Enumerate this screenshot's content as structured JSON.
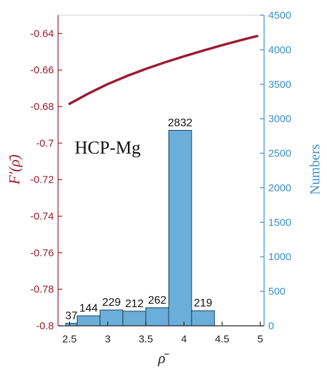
{
  "chart_data": {
    "type": "bar",
    "annotation": "HCP-Mg",
    "xlabel": "ρ̄",
    "ylabel_left": "F′(ρ̄)",
    "ylabel_right": "Numbers",
    "x_ticks": [
      "2.5",
      "3",
      "3.5",
      "4",
      "4.5",
      "5"
    ],
    "x_tick_values": [
      2.5,
      3,
      3.5,
      4,
      4.5,
      5
    ],
    "xlim": [
      2.35,
      5.05
    ],
    "y_left": {
      "ylim": [
        -0.8,
        -0.63
      ],
      "ticks": [
        "-0.8",
        "-0.78",
        "-0.76",
        "-0.74",
        "-0.72",
        "-0.7",
        "-0.68",
        "-0.66",
        "-0.64"
      ],
      "tick_values": [
        -0.8,
        -0.78,
        -0.76,
        -0.74,
        -0.72,
        -0.7,
        -0.68,
        -0.66,
        -0.64
      ]
    },
    "y_right": {
      "ylim": [
        0,
        4500
      ],
      "ticks": [
        "0",
        "500",
        "1000",
        "1500",
        "2000",
        "2500",
        "3000",
        "3500",
        "4000",
        "4500"
      ],
      "tick_values": [
        0,
        500,
        1000,
        1500,
        2000,
        2500,
        3000,
        3500,
        4000,
        4500
      ]
    },
    "histogram": {
      "axis": "right",
      "color": "#6aaed9",
      "bins": [
        {
          "x0": 2.45,
          "x1": 2.6,
          "value": 37,
          "label": "37"
        },
        {
          "x0": 2.6,
          "x1": 2.9,
          "value": 144,
          "label": "144"
        },
        {
          "x0": 2.9,
          "x1": 3.2,
          "value": 229,
          "label": "229"
        },
        {
          "x0": 3.2,
          "x1": 3.5,
          "value": 212,
          "label": "212"
        },
        {
          "x0": 3.5,
          "x1": 3.8,
          "value": 262,
          "label": "262"
        },
        {
          "x0": 3.8,
          "x1": 4.1,
          "value": 2832,
          "label": "2832"
        },
        {
          "x0": 4.1,
          "x1": 4.4,
          "value": 219,
          "label": "219"
        }
      ]
    },
    "line": {
      "axis": "left",
      "color": "#9b1b30",
      "x": [
        2.5,
        2.75,
        3.0,
        3.25,
        3.5,
        3.75,
        4.0,
        4.25,
        4.5,
        4.75,
        4.96
      ],
      "y": [
        -0.6785,
        -0.6728,
        -0.6677,
        -0.6633,
        -0.6594,
        -0.6558,
        -0.6525,
        -0.6494,
        -0.6464,
        -0.6436,
        -0.6414
      ]
    },
    "colors": {
      "left_axis": "#9b1b30",
      "right_axis": "#3a8fc7",
      "bar_edge": "#1f3b57"
    }
  }
}
